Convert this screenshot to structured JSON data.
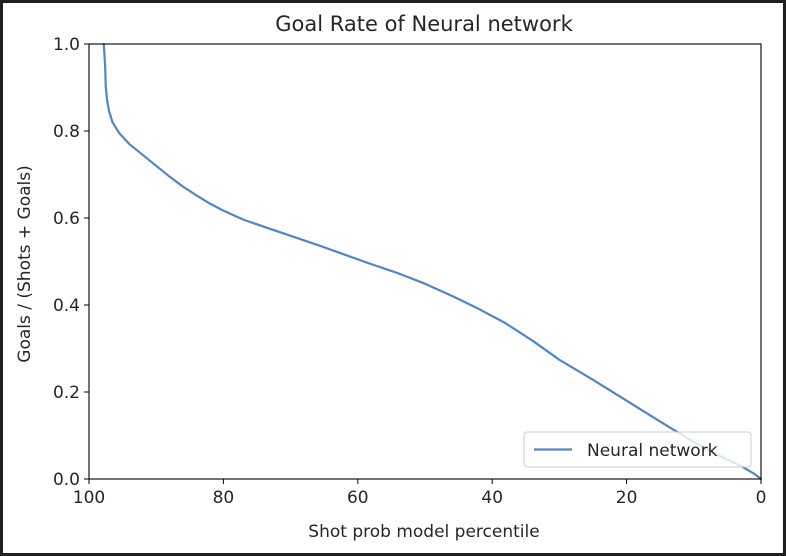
{
  "chart_data": {
    "type": "line",
    "title": "Goal Rate of Neural network",
    "xlabel": "Shot prob model percentile",
    "ylabel": "Goals / (Shots + Goals)",
    "xlim": [
      100,
      0
    ],
    "ylim": [
      0.0,
      1.0
    ],
    "xticks": [
      "100",
      "80",
      "60",
      "40",
      "20",
      "0"
    ],
    "xtick_values": [
      100,
      80,
      60,
      40,
      20,
      0
    ],
    "yticks": [
      "0.0",
      "0.2",
      "0.4",
      "0.6",
      "0.8",
      "1.0"
    ],
    "ytick_values": [
      0.0,
      0.2,
      0.4,
      0.6,
      0.8,
      1.0
    ],
    "grid": false,
    "legend": {
      "placement": "lower-right"
    },
    "colors": {
      "series": "#4f86c6",
      "axes": "#000000",
      "text": "#262626"
    },
    "series": [
      {
        "name": "Neural network",
        "x": [
          97.8,
          97.6,
          97.5,
          97.3,
          97.0,
          96.5,
          95.5,
          94.0,
          92.0,
          90.0,
          88.0,
          86.0,
          84.0,
          82.0,
          80.0,
          77.0,
          74.0,
          70.0,
          66.0,
          62.0,
          58.0,
          54.0,
          50.0,
          46.0,
          42.0,
          38.0,
          34.0,
          30.0,
          25.0,
          20.0,
          15.0,
          10.0,
          6.0,
          3.0,
          1.0,
          0.0
        ],
        "y": [
          1.0,
          0.95,
          0.9,
          0.87,
          0.845,
          0.82,
          0.795,
          0.77,
          0.745,
          0.72,
          0.695,
          0.672,
          0.652,
          0.633,
          0.617,
          0.596,
          0.58,
          0.559,
          0.538,
          0.516,
          0.494,
          0.473,
          0.449,
          0.421,
          0.391,
          0.358,
          0.318,
          0.274,
          0.228,
          0.18,
          0.132,
          0.085,
          0.052,
          0.03,
          0.012,
          0.0
        ]
      }
    ]
  }
}
